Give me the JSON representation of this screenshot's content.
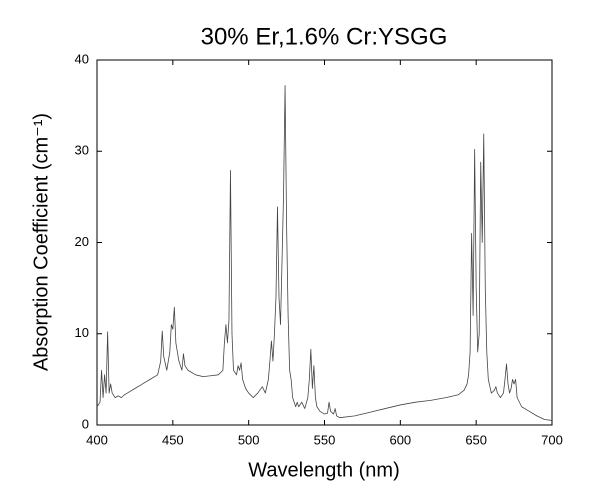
{
  "chart_data": {
    "type": "line",
    "title": "30% Er,1.6% Cr:YSGG",
    "xlabel": "Wavelength (nm)",
    "ylabel": "Absorption Coefficient (cm⁻¹)",
    "color": "#444444",
    "x": [
      400,
      402,
      403,
      404,
      405,
      406,
      407,
      408,
      409,
      410,
      412,
      414,
      416,
      418,
      420,
      425,
      430,
      435,
      440,
      442,
      443,
      444,
      446,
      448,
      449,
      450,
      451,
      452,
      454,
      456,
      457,
      458,
      460,
      465,
      470,
      475,
      480,
      483,
      484,
      485,
      486,
      487,
      488,
      489,
      490,
      492,
      493,
      494,
      495,
      496,
      498,
      500,
      503,
      506,
      509,
      511,
      513,
      514,
      515,
      516,
      517,
      518,
      519,
      520,
      521,
      522,
      523,
      524,
      525,
      526,
      527,
      528,
      529,
      530,
      531,
      532,
      533,
      535,
      537,
      539,
      540,
      541,
      542,
      543,
      544,
      545,
      547,
      550,
      552,
      553,
      554,
      556,
      557,
      558,
      560,
      570,
      580,
      590,
      600,
      610,
      620,
      630,
      638,
      642,
      644,
      645,
      646,
      647,
      648,
      649,
      650,
      651,
      652,
      653,
      654,
      655,
      656,
      657,
      658,
      660,
      662,
      663,
      664,
      666,
      668,
      669,
      670,
      671,
      672,
      673,
      674,
      675,
      676,
      677,
      680,
      685,
      690,
      695,
      700
    ],
    "y": [
      2.0,
      2.5,
      6.0,
      3.0,
      5.5,
      3.5,
      10.2,
      3.5,
      4.5,
      3.5,
      3.0,
      3.2,
      3.0,
      3.3,
      3.5,
      4.0,
      4.5,
      5.0,
      5.5,
      7.0,
      10.3,
      7.5,
      6.0,
      8.0,
      11.0,
      10.5,
      12.9,
      9.0,
      7.0,
      6.0,
      7.8,
      6.5,
      6.0,
      5.5,
      5.3,
      5.4,
      5.5,
      6.0,
      9.0,
      11.0,
      9.0,
      11.5,
      27.9,
      10.0,
      6.0,
      5.5,
      6.5,
      6.0,
      6.8,
      5.0,
      4.0,
      3.5,
      3.0,
      3.5,
      4.2,
      3.5,
      5.0,
      7.0,
      9.2,
      7.0,
      10.0,
      14.0,
      23.9,
      14.0,
      11.0,
      18.0,
      25.3,
      37.2,
      22.0,
      12.0,
      6.0,
      5.0,
      3.0,
      2.5,
      2.0,
      2.5,
      2.0,
      2.5,
      1.8,
      3.0,
      5.0,
      8.3,
      4.0,
      6.5,
      3.0,
      2.0,
      1.5,
      1.2,
      1.3,
      2.5,
      1.5,
      1.2,
      1.8,
      1.0,
      0.8,
      1.0,
      1.4,
      1.8,
      2.2,
      2.5,
      2.7,
      3.0,
      3.3,
      3.8,
      4.5,
      5.5,
      8.0,
      21.0,
      12.0,
      30.2,
      15.0,
      8.0,
      10.0,
      28.8,
      20.0,
      31.9,
      15.0,
      8.0,
      5.0,
      3.5,
      3.8,
      4.2,
      3.5,
      3.0,
      3.5,
      5.0,
      6.7,
      4.5,
      3.5,
      4.0,
      5.0,
      4.5,
      5.0,
      3.0,
      2.0,
      1.5,
      1.0,
      0.6,
      0.5
    ],
    "xlim": [
      400,
      700
    ],
    "xticks": [
      400,
      450,
      500,
      550,
      600,
      650,
      700
    ],
    "ylim": [
      0,
      40
    ],
    "yticks": [
      0,
      10,
      20,
      30,
      40
    ]
  }
}
